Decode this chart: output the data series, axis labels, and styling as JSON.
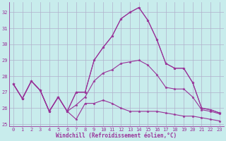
{
  "bg_color": "#c8ecec",
  "grid_color": "#b0b0cc",
  "line_color": "#993399",
  "xlabel": "Windchill (Refroidissement éolien,°C)",
  "ylim": [
    24.85,
    32.65
  ],
  "yticks": [
    25,
    26,
    27,
    28,
    29,
    30,
    31,
    32
  ],
  "xlim": [
    -0.5,
    23.5
  ],
  "x": [
    0,
    1,
    2,
    3,
    4,
    5,
    6,
    7,
    8,
    9,
    10,
    11,
    12,
    13,
    14,
    15,
    16,
    17,
    18,
    19,
    20,
    21,
    22,
    23
  ],
  "series_max": [
    27.5,
    26.6,
    27.7,
    27.1,
    25.8,
    26.7,
    25.8,
    27.0,
    27.0,
    29.0,
    29.8,
    30.5,
    31.6,
    32.0,
    32.3,
    31.5,
    30.3,
    28.8,
    28.5,
    28.5,
    27.6,
    26.0,
    25.9,
    25.7
  ],
  "series_min": [
    27.5,
    26.6,
    27.7,
    27.1,
    25.8,
    26.7,
    25.8,
    25.3,
    26.3,
    26.3,
    26.5,
    26.3,
    26.0,
    25.8,
    25.8,
    25.8,
    25.8,
    25.7,
    25.6,
    25.5,
    25.5,
    25.4,
    25.3,
    25.2
  ],
  "series_mean": [
    27.5,
    26.6,
    27.7,
    27.1,
    25.8,
    26.7,
    25.8,
    26.2,
    26.7,
    27.7,
    28.2,
    28.4,
    28.8,
    28.9,
    29.0,
    28.7,
    28.1,
    27.3,
    27.2,
    27.2,
    26.7,
    25.9,
    25.8,
    25.65
  ],
  "series_cur": [
    27.5,
    26.6,
    27.7,
    27.1,
    25.8,
    26.7,
    25.8,
    27.0,
    27.0,
    29.0,
    29.8,
    30.5,
    31.6,
    32.0,
    32.3,
    31.5,
    30.3,
    28.8,
    28.5,
    28.5,
    27.6,
    26.0,
    25.9,
    25.7
  ],
  "tick_fontsize": 5.0,
  "xlabel_fontsize": 5.5
}
